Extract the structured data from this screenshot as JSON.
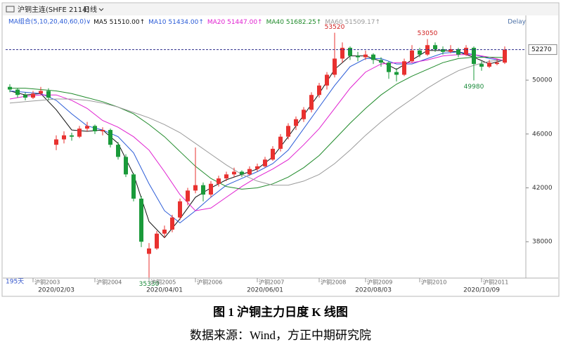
{
  "header": {
    "instrument": "沪铜主连(SHFE 2114)",
    "period": "日线",
    "delay": "Delay",
    "days": "195天"
  },
  "chart_data": {
    "type": "candlestick",
    "ylim": [
      35300,
      54700
    ],
    "yticks": [
      38000,
      42000,
      46000,
      50000
    ],
    "grid": false,
    "up_color": "#e8312f",
    "down_color": "#1a9a3a",
    "last_line_color": "#2b2b8c",
    "candles": {
      "open": [
        49500,
        49300,
        48900,
        48700,
        49000,
        49200,
        45200,
        45600,
        45900,
        45800,
        46400,
        46600,
        46200,
        46300,
        45200,
        44300,
        43000,
        41200,
        37100,
        37500,
        38600,
        38900,
        39800,
        41000,
        41800,
        42200,
        41500,
        42300,
        42700,
        43000,
        43200,
        43000,
        43400,
        43600,
        44100,
        44900,
        45800,
        46600,
        47100,
        47800,
        48900,
        49600,
        50400,
        51600,
        52400,
        51800,
        51700,
        51900,
        51500,
        51300,
        50600,
        50400,
        51400,
        52200,
        51900,
        52600,
        52300,
        52100,
        52300,
        51900,
        52400,
        51200,
        51000,
        51200,
        51300
      ],
      "high": [
        49700,
        49400,
        49100,
        49200,
        49500,
        49400,
        45900,
        46200,
        46100,
        46600,
        46900,
        46700,
        46500,
        46400,
        45400,
        44500,
        43100,
        41400,
        37900,
        38800,
        39200,
        40000,
        41200,
        42000,
        45000,
        42400,
        42500,
        42900,
        43200,
        43500,
        43300,
        43600,
        43800,
        44300,
        45100,
        46000,
        46800,
        47300,
        48000,
        49100,
        49800,
        50600,
        53520,
        52800,
        52500,
        52100,
        52200,
        52000,
        51700,
        51400,
        50900,
        51600,
        52600,
        52400,
        53050,
        52800,
        52500,
        52600,
        52400,
        52600,
        52500,
        51400,
        51500,
        51600,
        52500
      ],
      "low": [
        49100,
        48700,
        48500,
        48600,
        48900,
        48500,
        44800,
        45300,
        45500,
        45700,
        46200,
        46000,
        45900,
        45000,
        44100,
        42800,
        41000,
        37600,
        35330,
        37400,
        38300,
        38700,
        39600,
        40700,
        41600,
        41000,
        41300,
        42100,
        42500,
        42800,
        42800,
        42900,
        43200,
        43500,
        44000,
        44700,
        45600,
        46300,
        46900,
        47600,
        48700,
        49300,
        50200,
        51300,
        51500,
        51400,
        51500,
        51200,
        51000,
        50100,
        49900,
        50300,
        51300,
        51700,
        51800,
        52100,
        51900,
        52000,
        51700,
        51800,
        49980,
        50700,
        50900,
        51100,
        51200
      ],
      "close": [
        49300,
        48900,
        48700,
        49000,
        49200,
        48700,
        45600,
        45900,
        45800,
        46400,
        46600,
        46200,
        46300,
        45200,
        44300,
        43000,
        41200,
        38000,
        37500,
        38600,
        38900,
        39800,
        41000,
        41800,
        42200,
        41500,
        42300,
        42700,
        43000,
        43200,
        43000,
        43400,
        43600,
        44100,
        44900,
        45800,
        46600,
        47100,
        47800,
        48900,
        49600,
        50400,
        51600,
        52400,
        51800,
        51700,
        51900,
        51500,
        51300,
        50600,
        50400,
        51400,
        52200,
        51900,
        52600,
        52300,
        52100,
        52300,
        51900,
        52400,
        51200,
        51000,
        51300,
        51300,
        52270
      ]
    },
    "ma_title": "MA组合(5,10,20,40,60,0)∨",
    "ma_x": [
      0,
      2,
      4,
      6,
      8,
      10,
      12,
      14,
      16,
      18,
      20,
      22,
      24,
      26,
      28,
      30,
      32,
      34,
      36,
      38,
      40,
      42,
      44,
      46,
      48,
      50,
      52,
      54,
      56,
      58,
      60,
      62,
      64
    ],
    "ma_series": [
      {
        "name": "MA5",
        "value_label": "51510.00↑",
        "color": "#111111",
        "values": [
          49200,
          48900,
          49000,
          47800,
          46300,
          46200,
          46300,
          45300,
          43000,
          39500,
          38300,
          39700,
          41300,
          42000,
          42600,
          43000,
          43400,
          44300,
          45800,
          47400,
          49000,
          50800,
          51800,
          51800,
          51400,
          50800,
          51500,
          52200,
          52200,
          52100,
          51700,
          51200,
          51510
        ]
      },
      {
        "name": "MA10",
        "value_label": "51434.00↑",
        "color": "#2a5bd7",
        "values": [
          49200,
          49100,
          49000,
          48500,
          47500,
          46600,
          46300,
          45800,
          44600,
          42300,
          40300,
          39400,
          40300,
          41300,
          42200,
          42700,
          43200,
          43800,
          44800,
          46400,
          48000,
          49600,
          51000,
          51600,
          51600,
          51200,
          51200,
          51600,
          52000,
          52100,
          51900,
          51600,
          51434
        ]
      },
      {
        "name": "MA20",
        "value_label": "51447.00↑",
        "color": "#e020d0",
        "values": [
          48600,
          48800,
          48900,
          48900,
          48500,
          47900,
          47000,
          46500,
          45800,
          44800,
          43200,
          41500,
          40300,
          40500,
          41300,
          42100,
          42800,
          43400,
          44100,
          45200,
          46400,
          47900,
          49400,
          50600,
          51200,
          51300,
          51300,
          51500,
          51800,
          51900,
          51900,
          51700,
          51447
        ]
      },
      {
        "name": "MA40",
        "value_label": "51682.25↑",
        "color": "#1f8a2a",
        "values": [
          49400,
          49400,
          49300,
          49200,
          49000,
          48700,
          48400,
          48000,
          47500,
          46700,
          45800,
          44700,
          43600,
          42700,
          42100,
          41900,
          42000,
          42300,
          42800,
          43500,
          44400,
          45600,
          46800,
          47900,
          48900,
          49700,
          50300,
          50800,
          51300,
          51600,
          51700,
          51700,
          51682.25
        ]
      },
      {
        "name": "MA60",
        "value_label": "51509.17↑",
        "color": "#9a9a9a",
        "values": [
          48300,
          48400,
          48500,
          48600,
          48600,
          48500,
          48300,
          48000,
          47600,
          47200,
          46700,
          46100,
          45300,
          44500,
          43700,
          43000,
          42500,
          42200,
          42200,
          42500,
          43000,
          43800,
          44800,
          45900,
          46900,
          47800,
          48600,
          49400,
          50100,
          50700,
          51100,
          51400,
          51509.17
        ]
      }
    ],
    "annotations": [
      {
        "index": 42,
        "value": 53520,
        "position": "above"
      },
      {
        "index": 54,
        "value": 53050,
        "position": "above"
      },
      {
        "index": 60,
        "value": 49980,
        "position": "below"
      },
      {
        "index": 18,
        "value": 35330,
        "position": "below"
      }
    ],
    "contract_labels": [
      {
        "index": 3,
        "label": "沪铜2003"
      },
      {
        "index": 11,
        "label": "沪铜2004"
      },
      {
        "index": 18,
        "label": "沪铜2005"
      },
      {
        "index": 24,
        "label": "沪铜2006"
      },
      {
        "index": 32,
        "label": "沪铜2007"
      },
      {
        "index": 40,
        "label": "沪铜2008"
      },
      {
        "index": 46,
        "label": "沪铜2009"
      },
      {
        "index": 53,
        "label": "沪铜2010"
      },
      {
        "index": 61,
        "label": "沪铜2011"
      }
    ],
    "date_labels": [
      {
        "index": 6,
        "label": "2020/02/03"
      },
      {
        "index": 20,
        "label": "2020/04/01"
      },
      {
        "index": 33,
        "label": "2020/06/01"
      },
      {
        "index": 47,
        "label": "2020/08/03"
      },
      {
        "index": 61,
        "label": "2020/10/09"
      }
    ]
  },
  "caption": {
    "title": "图 1  沪铜主力日度 K 线图",
    "source": "数据来源：Wind，方正中期研究院"
  }
}
